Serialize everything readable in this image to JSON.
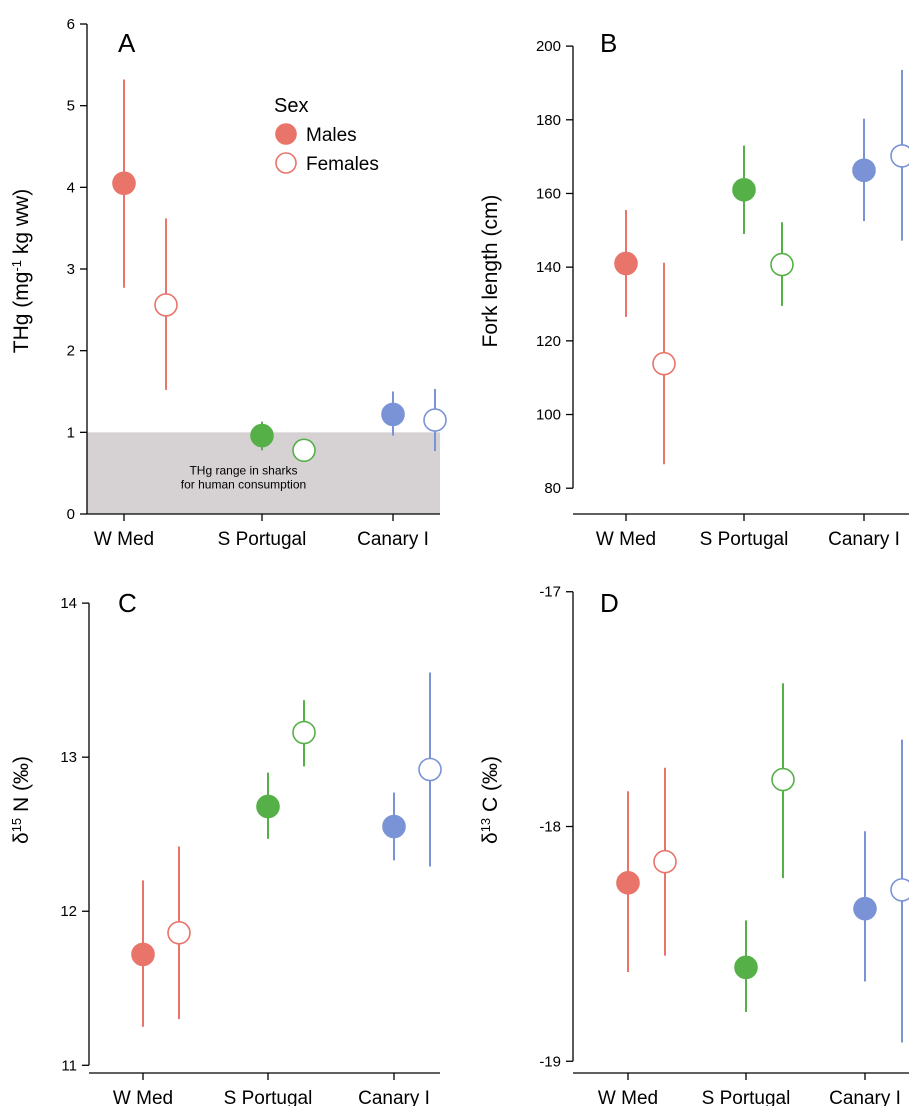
{
  "colors": {
    "W Med": "#e8746a",
    "S Portugal": "#56b048",
    "Canary I": "#7a93d6",
    "shade": "#d6d2d3"
  },
  "legend": {
    "title": "Sex",
    "items": [
      {
        "label": "Males",
        "style": "filled"
      },
      {
        "label": "Females",
        "style": "open"
      }
    ]
  },
  "shade_note": [
    "THg range in sharks",
    "for human consumption"
  ],
  "chart_data": [
    {
      "panel": "A",
      "type": "scatter",
      "ylabel_parts": [
        "THg (mg",
        "-1",
        " kg ww)"
      ],
      "ylim": [
        0,
        6
      ],
      "yticks": [
        0,
        1,
        2,
        3,
        4,
        5,
        6
      ],
      "categories": [
        "W Med",
        "S Portugal",
        "Canary I"
      ],
      "shaded_band": [
        0,
        1
      ],
      "series": [
        {
          "name": "Males",
          "values": [
            4.05,
            0.96,
            1.22
          ],
          "lower": [
            2.77,
            0.78,
            0.96
          ],
          "upper": [
            5.32,
            1.13,
            1.5
          ]
        },
        {
          "name": "Females",
          "values": [
            2.56,
            0.78,
            1.15
          ],
          "lower": [
            1.52,
            null,
            0.77
          ],
          "upper": [
            3.62,
            null,
            1.53
          ]
        }
      ]
    },
    {
      "panel": "B",
      "type": "scatter",
      "ylabel_parts": [
        "Fork length (cm)"
      ],
      "ylim": [
        73,
        206
      ],
      "yticks": [
        80,
        100,
        120,
        140,
        160,
        180,
        200
      ],
      "categories": [
        "W Med",
        "S Portugal",
        "Canary I"
      ],
      "series": [
        {
          "name": "Males",
          "values": [
            141,
            161,
            166.3
          ],
          "lower": [
            126.5,
            149,
            152.5
          ],
          "upper": [
            155.5,
            173,
            180.3
          ]
        },
        {
          "name": "Females",
          "values": [
            113.8,
            140.7,
            170.2
          ],
          "lower": [
            86.5,
            129.5,
            147.2
          ],
          "upper": [
            141.2,
            152.2,
            193.5
          ]
        }
      ]
    },
    {
      "panel": "C",
      "type": "scatter",
      "ylabel_parts": [
        "δ",
        "15",
        " N (‰)"
      ],
      "ylim": [
        10.95,
        14.15
      ],
      "yticks": [
        11,
        12,
        13,
        14
      ],
      "categories": [
        "W Med",
        "S Portugal",
        "Canary I"
      ],
      "series": [
        {
          "name": "Males",
          "values": [
            11.72,
            12.68,
            12.55
          ],
          "lower": [
            11.25,
            12.47,
            12.33
          ],
          "upper": [
            12.2,
            12.9,
            12.77
          ]
        },
        {
          "name": "Females",
          "values": [
            11.86,
            13.16,
            12.92
          ],
          "lower": [
            11.3,
            12.94,
            12.29
          ],
          "upper": [
            12.42,
            13.37,
            13.55
          ]
        }
      ]
    },
    {
      "panel": "D",
      "type": "scatter",
      "ylabel_parts": [
        "δ",
        "13",
        " C (‰)"
      ],
      "ylim": [
        -19.05,
        -16.95
      ],
      "yticks": [
        -17,
        -18,
        -19
      ],
      "categories": [
        "W Med",
        "S Portugal",
        "Canary I"
      ],
      "series": [
        {
          "name": "Males",
          "values": [
            -18.24,
            -18.6,
            -18.35
          ],
          "lower": [
            -18.62,
            -18.79,
            -18.66
          ],
          "upper": [
            -17.85,
            -18.4,
            -18.02
          ]
        },
        {
          "name": "Females",
          "values": [
            -18.15,
            -17.8,
            -18.27
          ],
          "lower": [
            -18.55,
            -18.22,
            -18.92
          ],
          "upper": [
            -17.75,
            -17.39,
            -17.63
          ]
        }
      ]
    }
  ]
}
